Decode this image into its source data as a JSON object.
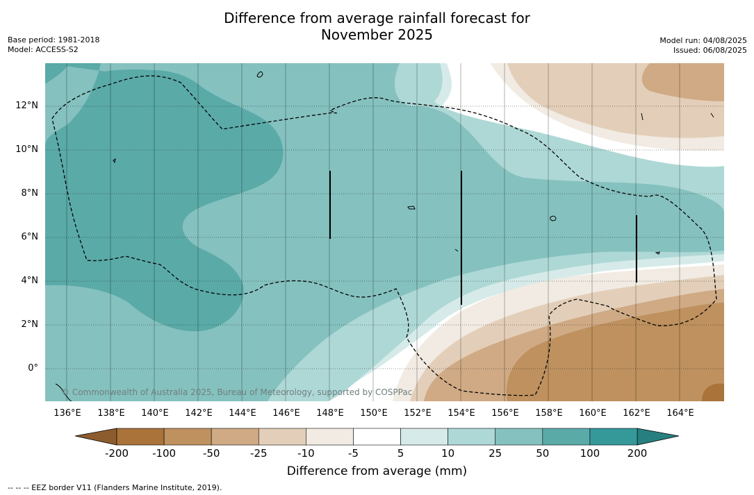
{
  "title_line1": "Difference from average rainfall forecast for",
  "title_line2": "November 2025",
  "base_period": "Base period: 1981-2018",
  "model": "Model: ACCESS-S2",
  "model_run": "Model run: 04/08/2025",
  "issued": "Issued: 06/08/2025",
  "y_ticks": [
    "12°N",
    "10°N",
    "8°N",
    "6°N",
    "4°N",
    "2°N",
    "0°"
  ],
  "x_ticks": [
    "136°E",
    "138°E",
    "140°E",
    "142°E",
    "144°E",
    "146°E",
    "148°E",
    "150°E",
    "152°E",
    "154°E",
    "156°E",
    "158°E",
    "160°E",
    "162°E",
    "164°E"
  ],
  "copyright": "© Commonwealth of Australia 2025, Bureau of Meteorology, supported by COSPPac",
  "colorbar": {
    "title": "Difference from average (mm)",
    "labels": [
      "-200",
      "-100",
      "-50",
      "-25",
      "-10",
      "-5",
      "5",
      "10",
      "25",
      "50",
      "100",
      "200"
    ],
    "colors": [
      "#a9733a",
      "#be915f",
      "#cfaa85",
      "#e3cfb9",
      "#f1ebe3",
      "#ffffff",
      "#d6ebe9",
      "#aed8d6",
      "#85c1bf",
      "#5aaaa8",
      "#35999a"
    ],
    "under_color": "#8d5c2e",
    "over_color": "#27807f"
  },
  "footnote": "--  --  -- EEZ border V11 (Flanders Marine Institute, 2019)."
}
